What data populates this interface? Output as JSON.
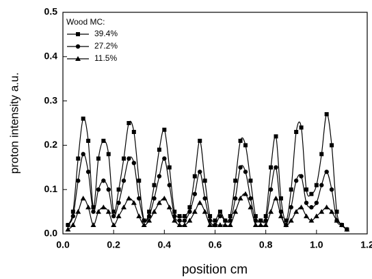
{
  "chart_data": {
    "type": "line-scatter",
    "xlabel": "position cm",
    "ylabel": "proton intensity a.u.",
    "legend_title": "Wood MC:",
    "legend": "upper left",
    "xlim": [
      0,
      1.2
    ],
    "ylim": [
      0,
      0.5
    ],
    "xticks": [
      {
        "value": 0,
        "label": "0.0"
      },
      0.2,
      0.4,
      0.6,
      0.8,
      {
        "value": 1,
        "label": "1.0"
      },
      1.2
    ],
    "yticks": [
      {
        "value": 0,
        "label": "0.0"
      },
      0.1,
      0.2,
      0.3,
      0.4,
      0.5
    ],
    "x": [
      0.02,
      0.04,
      0.06,
      0.08,
      0.1,
      0.12,
      0.14,
      0.16,
      0.18,
      0.2,
      0.22,
      0.24,
      0.26,
      0.28,
      0.3,
      0.32,
      0.34,
      0.36,
      0.38,
      0.4,
      0.42,
      0.44,
      0.46,
      0.48,
      0.5,
      0.52,
      0.54,
      0.56,
      0.58,
      0.6,
      0.62,
      0.64,
      0.66,
      0.68,
      0.7,
      0.72,
      0.74,
      0.76,
      0.78,
      0.8,
      0.82,
      0.84,
      0.86,
      0.88,
      0.9,
      0.92,
      0.94,
      0.96,
      0.98,
      1.0,
      1.02,
      1.04,
      1.06,
      1.08,
      1.1,
      1.12
    ],
    "series": [
      {
        "name": "39.4%",
        "color": "#000000",
        "marker": "square",
        "values": [
          0.02,
          0.05,
          0.17,
          0.26,
          0.21,
          0.06,
          0.17,
          0.21,
          0.18,
          0.05,
          0.1,
          0.17,
          0.25,
          0.23,
          0.12,
          0.03,
          0.05,
          0.11,
          0.19,
          0.235,
          0.15,
          0.05,
          0.04,
          0.04,
          0.06,
          0.13,
          0.21,
          0.12,
          0.04,
          0.03,
          0.05,
          0.03,
          0.04,
          0.12,
          0.21,
          0.2,
          0.12,
          0.04,
          0.03,
          0.04,
          0.15,
          0.22,
          0.08,
          0.03,
          0.1,
          0.23,
          0.24,
          0.1,
          0.09,
          0.11,
          0.18,
          0.27,
          0.2,
          0.05,
          0.02,
          0.01
        ]
      },
      {
        "name": "27.2%",
        "color": "#000000",
        "marker": "circle",
        "values": [
          0.02,
          0.04,
          0.12,
          0.18,
          0.14,
          0.05,
          0.1,
          0.12,
          0.1,
          0.04,
          0.07,
          0.12,
          0.17,
          0.16,
          0.08,
          0.03,
          0.04,
          0.08,
          0.13,
          0.17,
          0.11,
          0.04,
          0.03,
          0.03,
          0.05,
          0.09,
          0.14,
          0.08,
          0.03,
          0.02,
          0.04,
          0.03,
          0.03,
          0.08,
          0.15,
          0.14,
          0.08,
          0.03,
          0.03,
          0.03,
          0.1,
          0.15,
          0.05,
          0.02,
          0.06,
          0.12,
          0.13,
          0.07,
          0.06,
          0.07,
          0.11,
          0.14,
          0.1,
          0.03,
          0.02,
          0.01
        ]
      },
      {
        "name": "11.5%",
        "color": "#000000",
        "marker": "triangle",
        "values": [
          0.01,
          0.02,
          0.05,
          0.08,
          0.06,
          0.02,
          0.05,
          0.06,
          0.05,
          0.02,
          0.04,
          0.06,
          0.08,
          0.07,
          0.04,
          0.02,
          0.03,
          0.05,
          0.07,
          0.08,
          0.06,
          0.03,
          0.02,
          0.02,
          0.03,
          0.05,
          0.07,
          0.05,
          0.02,
          0.02,
          0.02,
          0.02,
          0.02,
          0.05,
          0.08,
          0.09,
          0.06,
          0.02,
          0.02,
          0.02,
          0.05,
          0.08,
          0.04,
          0.02,
          0.03,
          0.05,
          0.06,
          0.04,
          0.03,
          0.04,
          0.05,
          0.06,
          0.05,
          0.03,
          0.02,
          0.01
        ]
      }
    ]
  }
}
